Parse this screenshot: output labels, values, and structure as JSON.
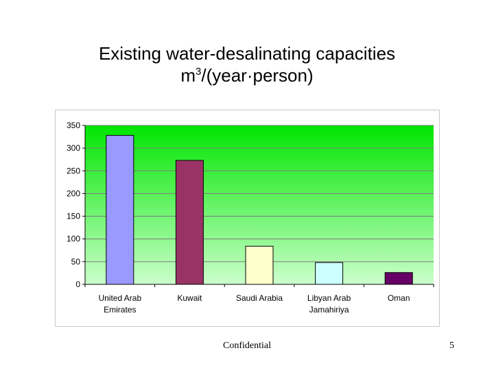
{
  "title": {
    "line1": "Existing water-desalinating capacities",
    "line2_prefix": "m",
    "line2_sup": "3",
    "line2_suffix": "/(year·person)"
  },
  "footer": {
    "confidential": "Confidential",
    "page_number": "5"
  },
  "chart_data": {
    "type": "bar",
    "title": "",
    "xlabel": "",
    "ylabel": "",
    "ylim": [
      0,
      350
    ],
    "yticks": [
      0,
      50,
      100,
      150,
      200,
      250,
      300,
      350
    ],
    "grid": true,
    "categories": [
      [
        "United Arab",
        "Emirates"
      ],
      [
        "Kuwait"
      ],
      [
        "Saudi Arabia"
      ],
      [
        "Libyan Arab",
        "Jamahiriya"
      ],
      [
        "Oman"
      ]
    ],
    "values": [
      328,
      273,
      84,
      48,
      26
    ],
    "colors": [
      "#9999ff",
      "#993366",
      "#ffffcc",
      "#ccffff",
      "#660066"
    ],
    "background_gradient": [
      "#00e600",
      "#ccffcc"
    ]
  }
}
